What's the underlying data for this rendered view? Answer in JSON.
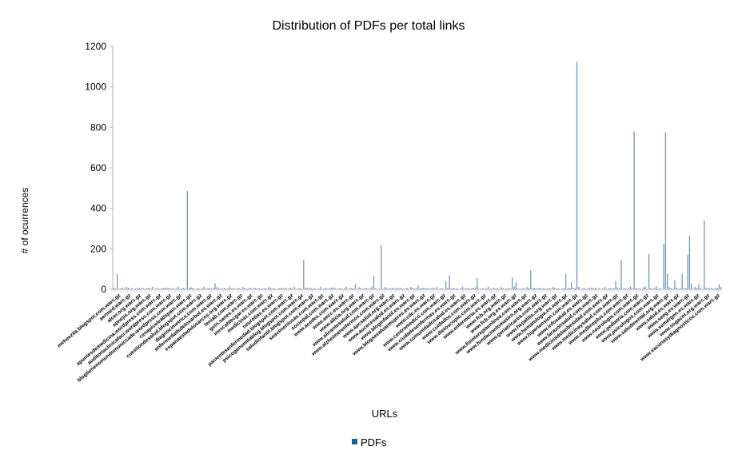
{
  "chart_data": {
    "type": "bar",
    "title": "Distribution of PDFs per total links",
    "xlabel": "URLs",
    "ylabel": "# of ocurrences",
    "ylim": [
      0,
      1200
    ],
    "yticks": [
      "0",
      "200",
      "400",
      "600",
      "800",
      "1000",
      "1200"
    ],
    "grid": false,
    "legend_position": "bottom",
    "bar_color": "#1f5b8c",
    "series": [
      {
        "name": "PDFs",
        "bar_count": 330,
        "notable_bars": [
          {
            "index": 2,
            "value": 75
          },
          {
            "index": 40,
            "value": 485
          },
          {
            "index": 55,
            "value": 30
          },
          {
            "index": 103,
            "value": 145
          },
          {
            "index": 131,
            "value": 25
          },
          {
            "index": 141,
            "value": 65
          },
          {
            "index": 145,
            "value": 220
          },
          {
            "index": 165,
            "value": 20
          },
          {
            "index": 180,
            "value": 40
          },
          {
            "index": 182,
            "value": 70
          },
          {
            "index": 197,
            "value": 55
          },
          {
            "index": 216,
            "value": 60
          },
          {
            "index": 218,
            "value": 35
          },
          {
            "index": 226,
            "value": 95
          },
          {
            "index": 245,
            "value": 75
          },
          {
            "index": 248,
            "value": 35
          },
          {
            "index": 251,
            "value": 1125
          },
          {
            "index": 272,
            "value": 40
          },
          {
            "index": 275,
            "value": 145
          },
          {
            "index": 282,
            "value": 780
          },
          {
            "index": 288,
            "value": 15
          },
          {
            "index": 290,
            "value": 175
          },
          {
            "index": 298,
            "value": 225
          },
          {
            "index": 299,
            "value": 775
          },
          {
            "index": 300,
            "value": 75
          },
          {
            "index": 304,
            "value": 45
          },
          {
            "index": 308,
            "value": 75
          },
          {
            "index": 311,
            "value": 170
          },
          {
            "index": 312,
            "value": 265
          },
          {
            "index": 313,
            "value": 30
          },
          {
            "index": 317,
            "value": 25
          },
          {
            "index": 320,
            "value": 340
          },
          {
            "index": 328,
            "value": 25
          }
        ]
      }
    ],
    "category_labels": [
      "meheezila.blogspot.com.warc.gz",
      "aermed.warc.gz",
      "alcer.org.warc.gz",
      "apneps.org.warc.gz",
      "apuntesdemedicina.wordpress.com.warc.gz",
      "auditoriaclinicafaci.wordpress.com.warc.gz",
      "blogtienenomundomoniccade.wordpress.com.warc.gz",
      "cenapiceleadspain.warc.gz",
      "cuestiondesalud.blogspot.com.warc.gz",
      "diagnocimetrics.com.warc.gz",
      "enfermedadsdelosarbol.es.warc.gz",
      "espanaestadelosarcos.org.warc.gz",
      "feniab.com.warc.gz",
      "gstn.sanes.es.warc.gz",
      "inescablecgar.es.warc.gz",
      "medicinaz.com.warc.gz",
      "neurotias.es.warc.gz",
      "pacientesenfermedad.blogspot.com.warc.gz",
      "psicogenomitablog.blogspot.com.warc.gz",
      "saludinfantil.blogspot.com.warc.gz",
      "seaveneniosas.com.warc.gz",
      "sociopal.com.warc.gz",
      "www.acedes.com.warc.gz",
      "www.aecc.es.warc.gz",
      "www.alicia.org.warc.gz",
      "www.alicantesalud.com.warc.gz",
      "www.alzheimerenfermos.com.warc.gz",
      "www.apcsalud.org.warc.gz",
      "www.aucecesalud.es.warc.gz",
      "www.bloginfantil.es.warc.gz",
      "www.blogsevaluarmujeres.es.warc.gz",
      "www.cdc.es.warc.gz",
      "www.centromedico.com.warc.gz",
      "www.ciudadesenfermas.es.warc.gz",
      "www.comunidadosalud.es.warc.gz",
      "www.cuidados.com.warc.gz",
      "www.dietoscopio.com.warc.gz",
      "www.enfermeria.es.warc.gz",
      "www.fcb.org.warc.gz",
      "www.fcb.org.es.warc.gz",
      "www.fisioterapiaenlinea.com.warc.gz",
      "www.fundaciontomasiro.org.warc.gz",
      "www.geriatricarea.com.warc.gz",
      "www.hepatitis.org.warc.gz",
      "www.hematologia.es.warc.gz",
      "www.hipertension.com.warc.gz",
      "www.infosalud.es.warc.gz",
      "www.larazonsalud.com.warc.gz",
      "www.medicinadelaobesidad.com.warc.gz",
      "www.medicinaysalud.com.warc.gz",
      "www.medlineplus.com.warc.gz",
      "www.neurologia.com.warc.gz",
      "www.pediatria.com.warc.gz",
      "www.psicologos.com.warc.gz",
      "www.saludmental.org.warc.gz",
      "www.salud.es.warc.gz",
      "www.seeg.es.warc.gz",
      "www.semergen.es.warc.gz",
      "www.sogacot.org.warc.gz",
      "www.vacunasydiagnosticos.com.warc.gz"
    ]
  },
  "legend": {
    "label": "PDFs",
    "color": "#1f5b8c"
  }
}
